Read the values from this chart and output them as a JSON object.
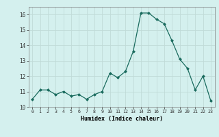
{
  "x": [
    0,
    1,
    2,
    3,
    4,
    5,
    6,
    7,
    8,
    9,
    10,
    11,
    12,
    13,
    14,
    15,
    16,
    17,
    18,
    19,
    20,
    21,
    22,
    23
  ],
  "y": [
    10.5,
    11.1,
    11.1,
    10.8,
    11.0,
    10.7,
    10.8,
    10.5,
    10.8,
    11.0,
    12.2,
    11.9,
    12.3,
    13.6,
    16.1,
    16.1,
    15.7,
    15.4,
    14.3,
    13.1,
    12.5,
    11.1,
    12.0,
    10.4
  ],
  "line_color": "#1a6b5e",
  "marker": "D",
  "marker_size": 2.0,
  "bg_color": "#d4f0ee",
  "grid_color": "#c0dbd8",
  "xlabel": "Humidex (Indice chaleur)",
  "xlim": [
    -0.5,
    23.5
  ],
  "ylim": [
    10,
    16.5
  ],
  "yticks": [
    10,
    11,
    12,
    13,
    14,
    15,
    16
  ],
  "xticks": [
    0,
    1,
    2,
    3,
    4,
    5,
    6,
    7,
    8,
    9,
    10,
    11,
    12,
    13,
    14,
    15,
    16,
    17,
    18,
    19,
    20,
    21,
    22,
    23
  ],
  "xtick_labels": [
    "0",
    "1",
    "2",
    "3",
    "4",
    "5",
    "6",
    "7",
    "8",
    "9",
    "10",
    "11",
    "12",
    "13",
    "14",
    "15",
    "16",
    "17",
    "18",
    "19",
    "20",
    "21",
    "22",
    "23"
  ]
}
